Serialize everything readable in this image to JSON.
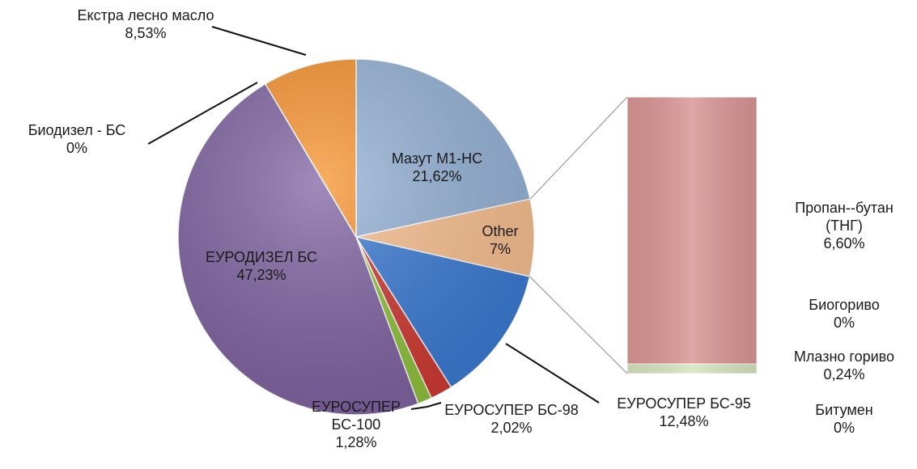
{
  "chart_data": {
    "type": "pie",
    "categories": [
      "Мазут М1-НС",
      "Other",
      "ЕУРОСУПЕР БС-95",
      "ЕУРОСУПЕР БС-98",
      "ЕУРОСУПЕР БС-100",
      "ЕУРОДИЗЕЛ БС",
      "Биодизел - БС",
      "Екстра лесно масло"
    ],
    "values": [
      21.62,
      7,
      12.48,
      2.02,
      1.28,
      47.23,
      0,
      8.53
    ],
    "value_labels": [
      "21,62%",
      "7%",
      "12,48%",
      "2,02%",
      "1,28%",
      "47,23%",
      "0%",
      "8,53%"
    ],
    "colors": [
      "#95b3d7",
      "#fac090",
      "#3b7bd4",
      "#d03a32",
      "#8fc23c",
      "#8064a2",
      "#4bacc6",
      "#f7932e"
    ],
    "bar": {
      "categories": [
        "Битумен",
        "Млазно гориво",
        "Биогориво",
        "Пропан--бутан (ТНГ)"
      ],
      "values": [
        0,
        0.24,
        0,
        6.6
      ],
      "value_labels": [
        "0%",
        "0,24%",
        "0%",
        "6,60%"
      ],
      "colors": [
        "#9bbb59",
        "#d7e4bd",
        "#b7dee8",
        "#d99694"
      ]
    }
  }
}
